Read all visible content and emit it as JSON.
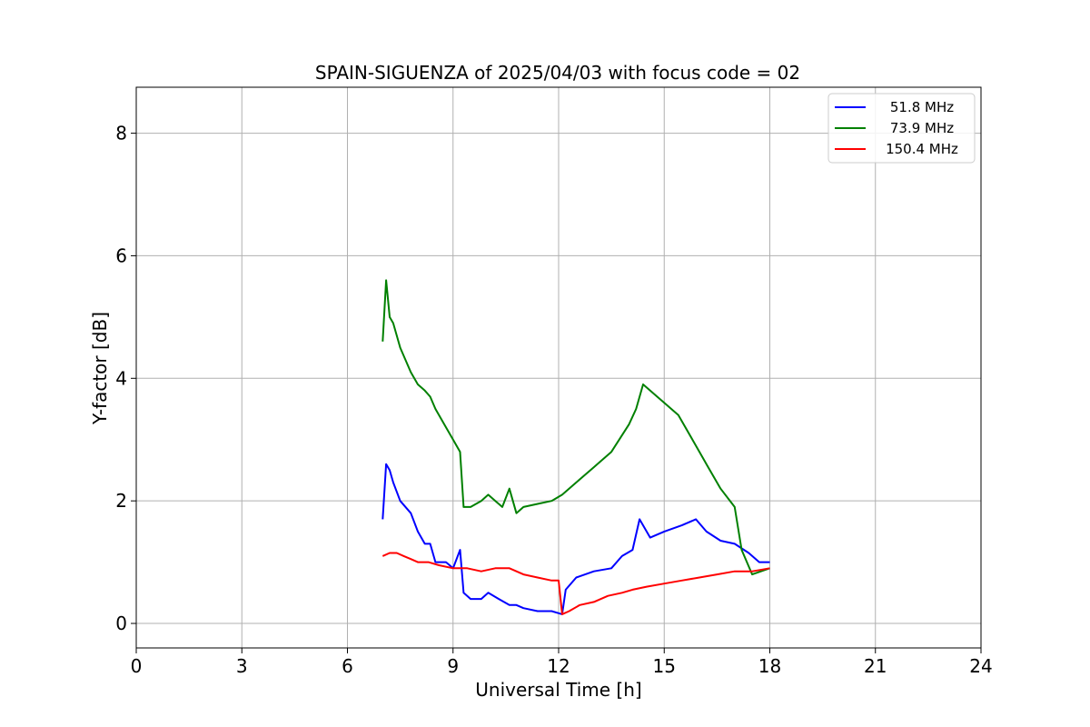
{
  "chart_data": {
    "type": "line",
    "title": "SPAIN-SIGUENZA of 2025/04/03 with focus code = 02",
    "xlabel": "Universal Time [h]",
    "ylabel": "Y-factor [dB]",
    "xlim": [
      0,
      24
    ],
    "ylim": [
      -0.4,
      8.75
    ],
    "xticks": [
      0,
      3,
      6,
      9,
      12,
      15,
      18,
      21,
      24
    ],
    "yticks": [
      0,
      2,
      4,
      6,
      8
    ],
    "grid": true,
    "legend_position": "top-right",
    "series": [
      {
        "name": "51.8 MHz",
        "color": "#0000ff",
        "x": [
          7.0,
          7.1,
          7.2,
          7.3,
          7.5,
          7.8,
          8.0,
          8.2,
          8.35,
          8.5,
          8.8,
          9.0,
          9.2,
          9.3,
          9.5,
          9.8,
          10.0,
          10.3,
          10.6,
          10.8,
          11.0,
          11.4,
          11.8,
          12.1,
          12.2,
          12.5,
          13.0,
          13.5,
          13.8,
          14.1,
          14.3,
          14.6,
          15.0,
          15.5,
          15.9,
          16.2,
          16.6,
          17.0,
          17.4,
          17.7,
          18.0
        ],
        "y": [
          1.7,
          2.6,
          2.5,
          2.3,
          2.0,
          1.8,
          1.5,
          1.3,
          1.3,
          1.0,
          1.0,
          0.9,
          1.2,
          0.5,
          0.4,
          0.4,
          0.5,
          0.4,
          0.3,
          0.3,
          0.25,
          0.2,
          0.2,
          0.15,
          0.55,
          0.75,
          0.85,
          0.9,
          1.1,
          1.2,
          1.7,
          1.4,
          1.5,
          1.6,
          1.7,
          1.5,
          1.35,
          1.3,
          1.15,
          1.0,
          1.0
        ]
      },
      {
        "name": "73.9 MHz",
        "color": "#008000",
        "x": [
          7.0,
          7.1,
          7.2,
          7.3,
          7.5,
          7.8,
          8.0,
          8.2,
          8.35,
          8.5,
          8.8,
          9.0,
          9.2,
          9.3,
          9.5,
          9.8,
          10.0,
          10.2,
          10.4,
          10.6,
          10.8,
          11.0,
          11.4,
          11.8,
          12.1,
          12.5,
          13.0,
          13.5,
          14.0,
          14.2,
          14.4,
          14.8,
          15.0,
          15.4,
          15.8,
          16.2,
          16.6,
          17.0,
          17.2,
          17.5,
          18.0
        ],
        "y": [
          4.6,
          5.6,
          5.0,
          4.9,
          4.5,
          4.1,
          3.9,
          3.8,
          3.7,
          3.5,
          3.2,
          3.0,
          2.8,
          1.9,
          1.9,
          2.0,
          2.1,
          2.0,
          1.9,
          2.2,
          1.8,
          1.9,
          1.95,
          2.0,
          2.1,
          2.3,
          2.55,
          2.8,
          3.25,
          3.5,
          3.9,
          3.7,
          3.6,
          3.4,
          3.0,
          2.6,
          2.2,
          1.9,
          1.2,
          0.8,
          0.9
        ]
      },
      {
        "name": "150.4 MHz",
        "color": "#ff0000",
        "x": [
          7.0,
          7.2,
          7.4,
          7.6,
          7.8,
          8.0,
          8.3,
          8.6,
          9.0,
          9.4,
          9.8,
          10.2,
          10.6,
          11.0,
          11.4,
          11.8,
          12.0,
          12.1,
          12.3,
          12.6,
          13.0,
          13.4,
          13.8,
          14.1,
          14.5,
          15.0,
          15.5,
          16.0,
          16.5,
          17.0,
          17.5,
          18.0
        ],
        "y": [
          1.1,
          1.15,
          1.15,
          1.1,
          1.05,
          1.0,
          1.0,
          0.95,
          0.9,
          0.9,
          0.85,
          0.9,
          0.9,
          0.8,
          0.75,
          0.7,
          0.7,
          0.15,
          0.2,
          0.3,
          0.35,
          0.45,
          0.5,
          0.55,
          0.6,
          0.65,
          0.7,
          0.75,
          0.8,
          0.85,
          0.85,
          0.9
        ]
      }
    ]
  }
}
